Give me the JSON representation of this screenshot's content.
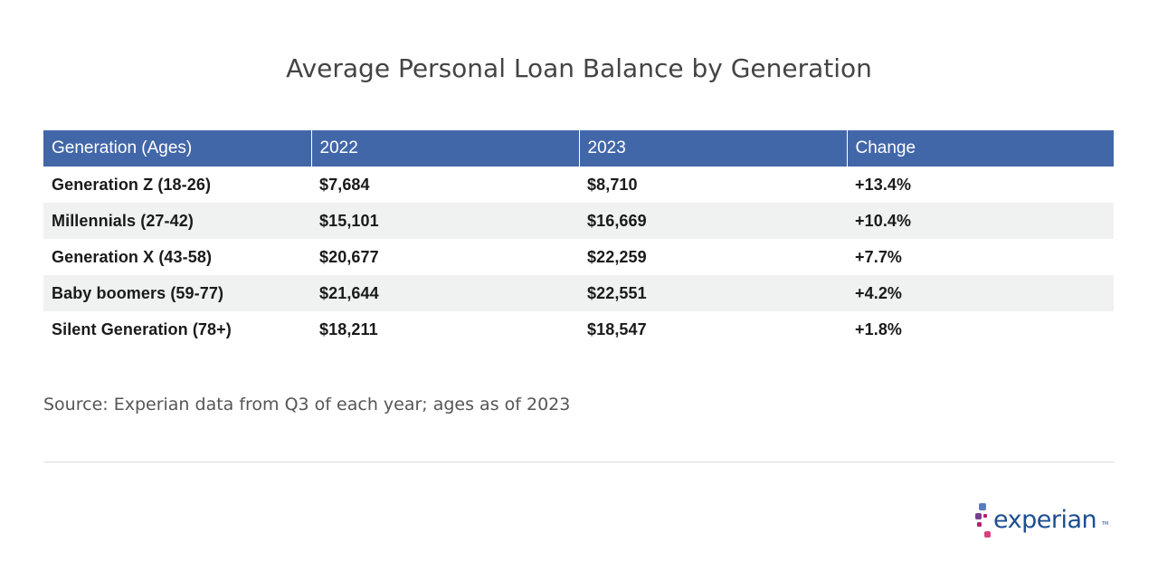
{
  "title": "Average Personal Loan Balance by Generation",
  "chart_data": {
    "type": "table",
    "title": "Average Personal Loan Balance by Generation",
    "columns": [
      "Generation (Ages)",
      "2022",
      "2023",
      "Change"
    ],
    "rows": [
      [
        "Generation Z (18-26)",
        "$7,684",
        "$8,710",
        "+13.4%"
      ],
      [
        "Millennials (27-42)",
        "$15,101",
        "$16,669",
        "+10.4%"
      ],
      [
        "Generation X (43-58)",
        "$20,677",
        "$22,259",
        "+7.7%"
      ],
      [
        "Baby boomers (59-77)",
        "$21,644",
        "$22,551",
        "+4.2%"
      ],
      [
        "Silent Generation (78+)",
        "$18,211",
        "$18,547",
        "+1.8%"
      ]
    ]
  },
  "source": "Source: Experian data from Q3 of each year; ages as of 2023",
  "logo": {
    "text": "experian",
    "trademark": "TM",
    "colors": {
      "text": "#1d4f91",
      "square_blue": "#5a7bc4",
      "square_purple": "#7a3d8f",
      "square_magenta": "#b01f72",
      "square_pink": "#d6427e"
    }
  },
  "colors": {
    "header_background": "#4267a9",
    "header_text": "#ffffff",
    "stripe_background": "#f0f1f1",
    "title_text": "#444444",
    "divider": "#dddddd"
  }
}
